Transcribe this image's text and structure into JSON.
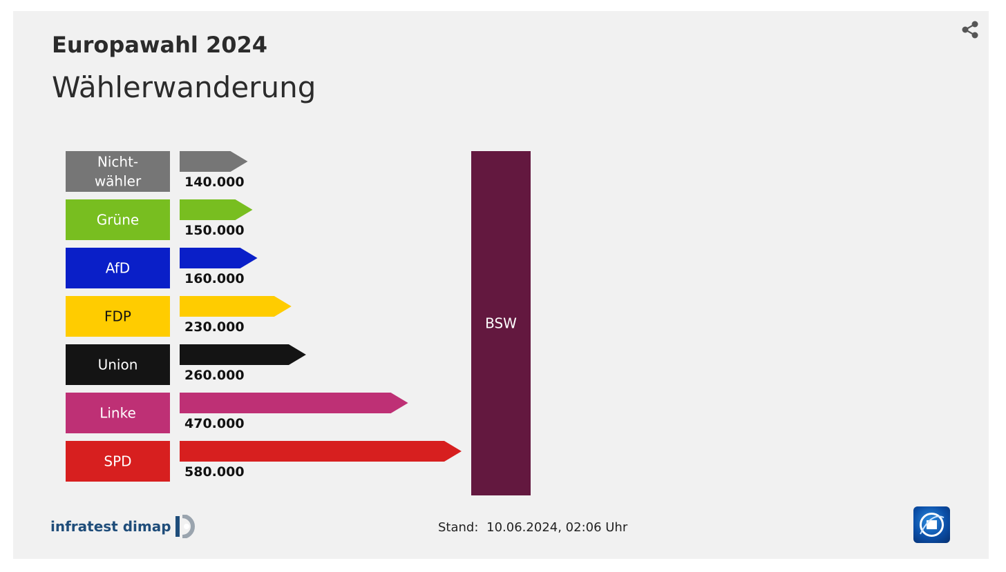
{
  "header": {
    "title": "Europawahl 2024",
    "subtitle": "Wählerwanderung"
  },
  "chart_data": {
    "type": "bar",
    "orientation": "horizontal",
    "target": {
      "label": "BSW",
      "color": "#63183f"
    },
    "categories": [
      "Nicht-\nwähler",
      "Grüne",
      "AfD",
      "FDP",
      "Union",
      "Linke",
      "SPD"
    ],
    "values": [
      140000,
      150000,
      160000,
      230000,
      260000,
      470000,
      580000
    ],
    "value_labels": [
      "140.000",
      "150.000",
      "160.000",
      "230.000",
      "260.000",
      "470.000",
      "580.000"
    ],
    "colors": [
      "#767676",
      "#78be20",
      "#0a1fc8",
      "#ffcc00",
      "#141414",
      "#be3075",
      "#d71f1f"
    ],
    "label_text_colors": [
      "#ffffff",
      "#ffffff",
      "#ffffff",
      "#111111",
      "#ffffff",
      "#ffffff",
      "#ffffff"
    ],
    "xlim": [
      0,
      580000
    ],
    "grid": false,
    "legend": "none"
  },
  "footer": {
    "source": "infratest dimap",
    "stand_label": "Stand:",
    "stand_value": "10.06.2024, 02:06 Uhr"
  },
  "icons": {
    "share": "share-icon",
    "source_logo": "infratest-dimap-logo",
    "broadcaster_logo": "tagesschau-logo"
  }
}
